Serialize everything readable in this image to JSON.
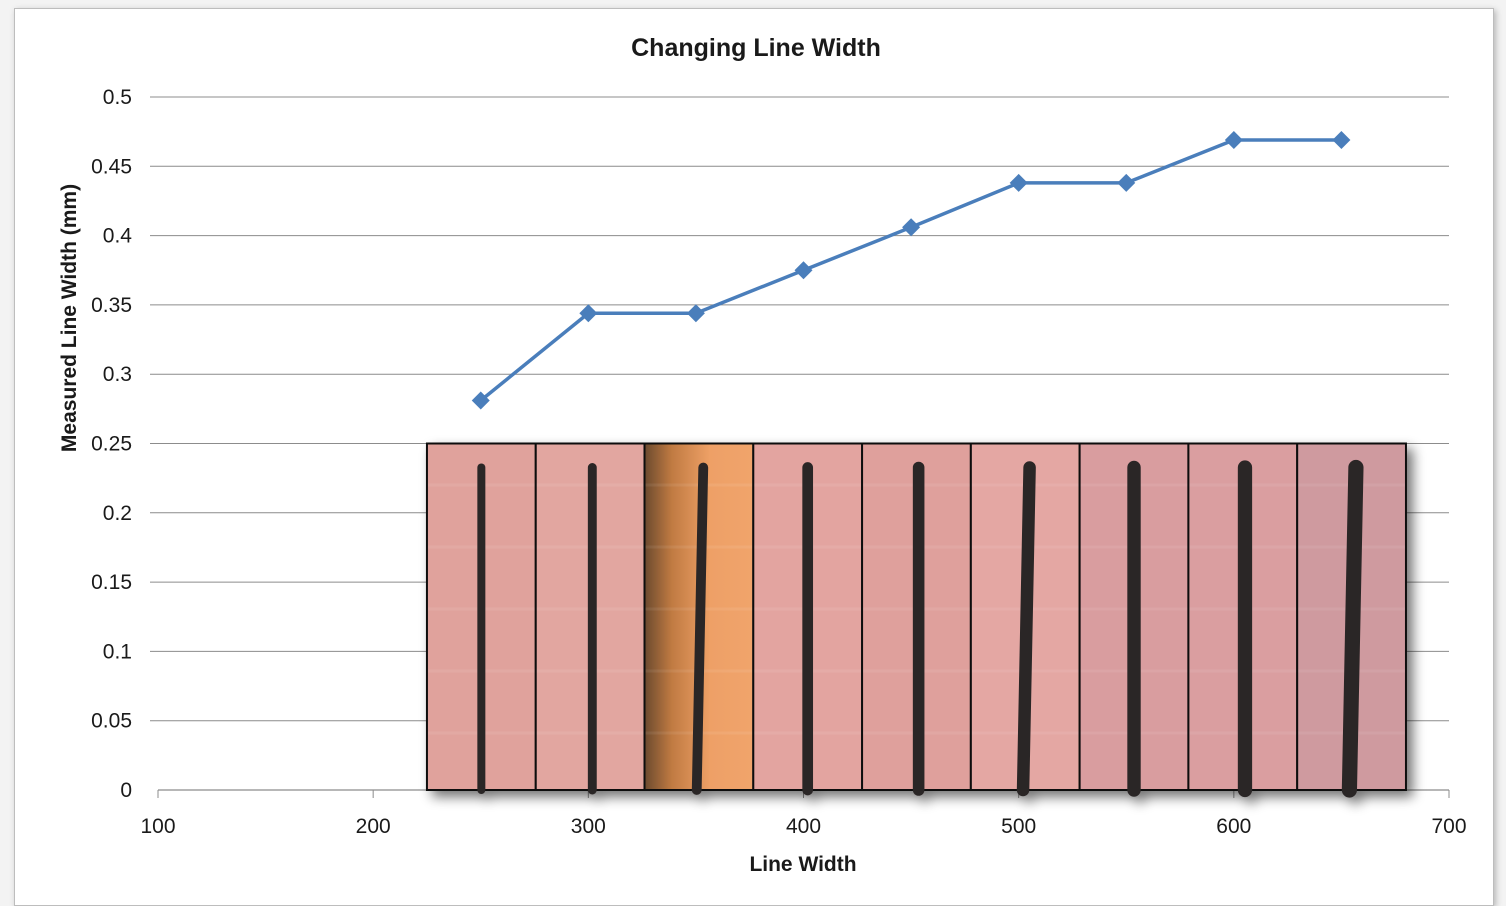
{
  "chart_data": {
    "type": "line",
    "title": "Changing Line Width",
    "xlabel": "Line Width",
    "ylabel": "Measured Line Width (mm)",
    "xlim": [
      100,
      700
    ],
    "ylim": [
      0,
      0.5
    ],
    "x_ticks": [
      "100",
      "200",
      "300",
      "400",
      "500",
      "600",
      "700"
    ],
    "y_ticks": [
      "0",
      "0.05",
      "0.1",
      "0.15",
      "0.2",
      "0.25",
      "0.3",
      "0.35",
      "0.4",
      "0.45",
      "0.5"
    ],
    "grid": "horizontal",
    "legend": "none",
    "series": [
      {
        "color": "#4a7ebb",
        "marker": "diamond",
        "x": [
          250,
          300,
          350,
          400,
          450,
          500,
          550,
          600,
          650
        ],
        "y": [
          0.281,
          0.344,
          0.344,
          0.375,
          0.406,
          0.438,
          0.438,
          0.469,
          0.469
        ]
      }
    ],
    "inset_photos": {
      "count": 9,
      "content": "microscope photos of printed dark lines on pink substrate",
      "y_range": [
        0,
        0.25
      ],
      "x_range": [
        225,
        680
      ],
      "backgrounds": [
        "#e0a29c",
        "#e2a6a0",
        "#e59a63",
        "#e3a4a0",
        "#dfa09c",
        "#e4a7a3",
        "#d99d9f",
        "#da9ea0",
        "#cf9a9f"
      ],
      "line_color": "#2c2626"
    }
  }
}
